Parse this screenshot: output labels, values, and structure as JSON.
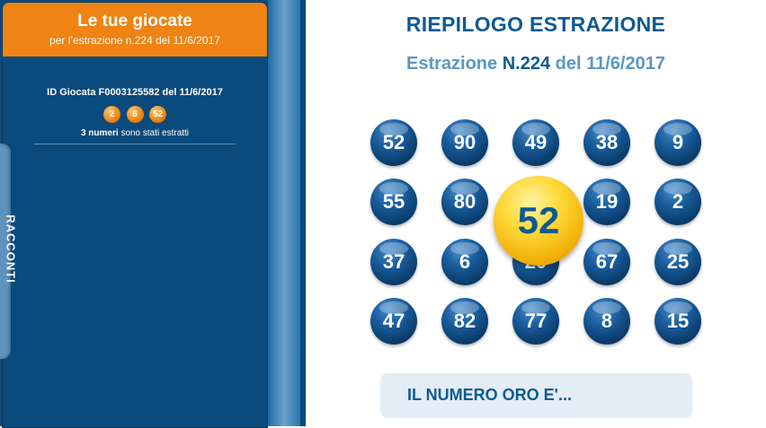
{
  "panel": {
    "title": "Le tue giocate",
    "subtitle": "per l’estrazione n.224 del 11/6/2017",
    "play_id": "ID Giocata F0003125582 del 11/6/2017",
    "played_numbers": [
      "2",
      "6",
      "52"
    ],
    "extracted_count": "3 numeri",
    "extracted_text": "sono stati estratti"
  },
  "side_tab": {
    "label": "RACCONTI"
  },
  "summary": {
    "title": "RIEPILOGO ESTRAZIONE",
    "label": "Estrazione",
    "number": "N.224",
    "date": "del 11/6/2017"
  },
  "balls": [
    [
      "52",
      "90",
      "49",
      "38",
      "9"
    ],
    [
      "55",
      "80",
      "",
      "19",
      "2"
    ],
    [
      "37",
      "6",
      "20",
      "67",
      "25"
    ],
    [
      "47",
      "82",
      "77",
      "8",
      "15"
    ]
  ],
  "gold_number": "52",
  "gold_label": "IL NUMERO ORO E'...",
  "colors": {
    "panel_bg": "#0b4a7c",
    "header_orange": "#ef8313",
    "title_blue": "#0d5a93",
    "subtitle_blue": "#5a97c4",
    "gold": "#ffd93a"
  }
}
